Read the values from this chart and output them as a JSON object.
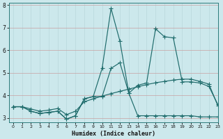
{
  "xlabel": "Humidex (Indice chaleur)",
  "background_color": "#cce8ec",
  "grid_color_major": "#b8d8dc",
  "grid_color_minor": "#daeef0",
  "line_color": "#1e6b6b",
  "xlim": [
    -0.5,
    23
  ],
  "ylim": [
    2.8,
    8.1
  ],
  "yticks": [
    3,
    4,
    5,
    6,
    7,
    8
  ],
  "xticks": [
    0,
    1,
    2,
    3,
    4,
    5,
    6,
    7,
    8,
    9,
    10,
    11,
    12,
    13,
    14,
    15,
    16,
    17,
    18,
    19,
    20,
    21,
    22,
    23
  ],
  "series1_x": [
    0,
    1,
    2,
    3,
    4,
    5,
    6,
    7,
    8,
    9,
    10,
    11,
    12,
    13,
    14,
    15,
    16,
    17,
    18,
    19,
    20,
    21,
    22,
    23
  ],
  "series1_y": [
    3.5,
    3.5,
    3.3,
    3.2,
    3.25,
    3.3,
    2.95,
    3.1,
    3.85,
    3.95,
    5.2,
    7.85,
    6.4,
    4.1,
    4.45,
    4.55,
    6.95,
    6.6,
    6.55,
    4.6,
    4.6,
    4.55,
    4.4,
    3.6
  ],
  "series2_x": [
    0,
    1,
    2,
    3,
    4,
    5,
    6,
    7,
    8,
    9,
    10,
    11,
    12,
    13,
    14,
    15,
    16,
    17,
    18,
    19,
    20,
    21,
    22,
    23
  ],
  "series2_y": [
    3.5,
    3.5,
    3.3,
    3.2,
    3.25,
    3.3,
    2.95,
    3.1,
    3.85,
    3.95,
    3.95,
    5.2,
    5.45,
    4.1,
    3.1,
    3.1,
    3.1,
    3.1,
    3.1,
    3.1,
    3.1,
    3.05,
    3.05,
    3.05
  ],
  "series3_x": [
    0,
    1,
    2,
    3,
    4,
    5,
    6,
    7,
    8,
    9,
    10,
    11,
    12,
    13,
    14,
    15,
    16,
    17,
    18,
    19,
    20,
    21,
    22,
    23
  ],
  "series3_y": [
    3.5,
    3.5,
    3.4,
    3.3,
    3.35,
    3.42,
    3.15,
    3.3,
    3.72,
    3.85,
    3.97,
    4.08,
    4.18,
    4.28,
    4.38,
    4.48,
    4.56,
    4.62,
    4.68,
    4.72,
    4.72,
    4.62,
    4.5,
    3.55
  ]
}
